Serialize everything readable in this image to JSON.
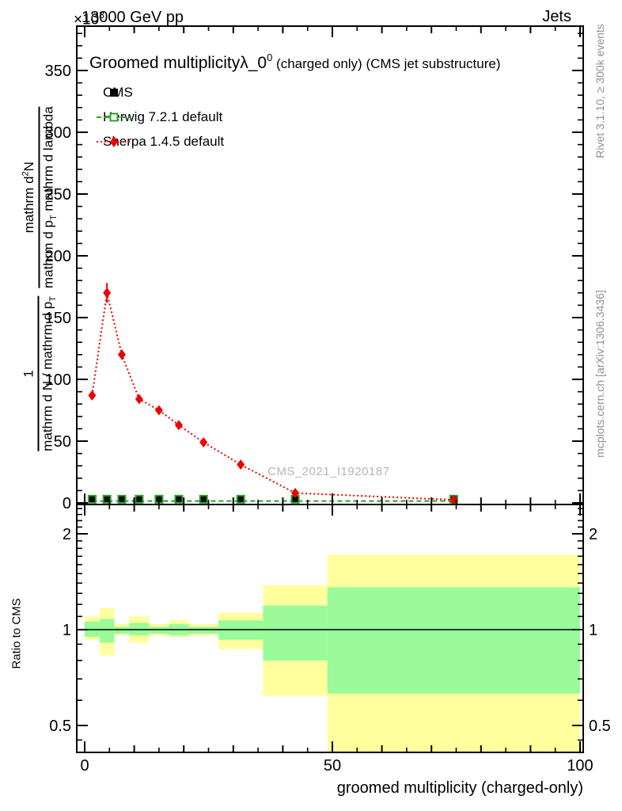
{
  "header": {
    "scale_prefix": "×10",
    "scale_exp": "3",
    "beam_label": "13000 GeV pp",
    "process_label": "Jets"
  },
  "title": {
    "main": "Groomed multiplicity",
    "lambda": "λ_0",
    "sup": "0",
    "suffix": " (charged only) (CMS jet substructure)"
  },
  "legend": [
    {
      "label": "CMS",
      "marker": "filled-square"
    },
    {
      "label": "Herwig 7.2.1 default",
      "marker": "open-square-dashed-line"
    },
    {
      "label": "Sherpa 1.4.5 default",
      "marker": "filled-diamond-dotted-line"
    }
  ],
  "watermark": "CMS_2021_I1920187",
  "side_notes": {
    "top": "Rivet 3.1.10, ≥ 300k events",
    "bottom": "mcplots.cern.ch [arXiv:1306.3436]"
  },
  "axes": {
    "main_ylabel": {
      "frac1_num": "1",
      "frac1_den_pre": "mathrm d N / mathrm d p",
      "frac1_den_sub": "T",
      "frac2_num_pre": "mathrm d",
      "frac2_num_sup": "2",
      "frac2_num_post": "N",
      "frac2_den_pre": "mathrm d p",
      "frac2_den_sub": "T",
      "frac2_den_post": " mathrm d lambda"
    },
    "ratio_ylabel": "Ratio to CMS",
    "xlabel": "groomed multiplicity (charged-only)"
  },
  "colors": {
    "cms": "#000000",
    "herwig": "#2ca02c",
    "sherpa": "#ee0000",
    "band_yellow": "#ffff9e",
    "band_green": "#99fb99",
    "frame": "#000000"
  },
  "chart_data": {
    "type": "line",
    "title": "Groomed multiplicity λ_0^0 (charged only) (CMS jet substructure)",
    "xlabel": "groomed multiplicity (charged-only)",
    "ylabel": "1/(dN/dp_T) d²N/(dp_T dλ)  [×10³]",
    "y_units_scale": "×10³",
    "xlim": [
      -1.6,
      100.6
    ],
    "main_ylim": [
      -1.3,
      386
    ],
    "x_ticks_major": [
      0,
      50,
      100
    ],
    "x_ticks_medium": [
      10,
      20,
      30,
      40,
      60,
      70,
      80,
      90
    ],
    "x_ticks_minor": [
      5,
      15,
      25,
      35,
      45,
      55,
      65,
      75,
      85,
      95
    ],
    "y_ticks_major": [
      0,
      50,
      100,
      150,
      200,
      250,
      300,
      350
    ],
    "y_ticks_minor_step": 10,
    "grid": false,
    "legend_position": "top-left-inside",
    "bin_edges": [
      0,
      3,
      6,
      9,
      13,
      17,
      21,
      27,
      36,
      49,
      100
    ],
    "x_centers": [
      1.5,
      4.5,
      7.5,
      11,
      15,
      19,
      24,
      31.5,
      42.5,
      74.5
    ],
    "series": [
      {
        "name": "CMS",
        "style": "filled-square",
        "values": [
          3,
          3,
          3,
          3,
          3,
          3,
          3,
          3,
          3,
          3
        ]
      },
      {
        "name": "Herwig 7.2.1 default",
        "style": "open-square, dashed line",
        "values": [
          3,
          3,
          3,
          3,
          3,
          3,
          3,
          3,
          3,
          3
        ]
      },
      {
        "name": "Sherpa 1.4.5 default",
        "style": "filled-diamond, dotted line",
        "values": [
          87,
          170,
          120,
          84,
          75,
          63,
          49,
          31,
          8,
          2.5
        ],
        "yerr": [
          3,
          8,
          4,
          2,
          2,
          2,
          1.5,
          1,
          0.5,
          0.5
        ]
      }
    ],
    "ratio_panel": {
      "ylabel": "Ratio to CMS",
      "yscale": "log",
      "ylim": [
        0.412,
        2.47
      ],
      "ticks_major": [
        0.5,
        1,
        2
      ],
      "ticks_major_labels": [
        "0.5",
        "1",
        "2"
      ],
      "ticks_minor": [
        0.45,
        0.6,
        0.7,
        0.8,
        0.9,
        1.1,
        1.2,
        1.3,
        1.4,
        1.5,
        1.6,
        1.7,
        1.8,
        1.9,
        2.1,
        2.2,
        2.3,
        2.4
      ],
      "unity_line": 1,
      "bands": [
        {
          "bin": [
            0,
            3
          ],
          "yellow": [
            0.93,
            1.1
          ],
          "green": [
            0.95,
            1.06
          ]
        },
        {
          "bin": [
            3,
            6
          ],
          "yellow": [
            0.83,
            1.17
          ],
          "green": [
            0.91,
            1.08
          ]
        },
        {
          "bin": [
            6,
            9
          ],
          "yellow": [
            0.96,
            1.04
          ],
          "green": [
            0.97,
            1.02
          ]
        },
        {
          "bin": [
            9,
            13
          ],
          "yellow": [
            0.91,
            1.1
          ],
          "green": [
            0.96,
            1.05
          ]
        },
        {
          "bin": [
            13,
            17
          ],
          "yellow": [
            0.96,
            1.04
          ],
          "green": [
            0.97,
            1.02
          ]
        },
        {
          "bin": [
            17,
            21
          ],
          "yellow": [
            0.95,
            1.07
          ],
          "green": [
            0.96,
            1.04
          ]
        },
        {
          "bin": [
            21,
            27
          ],
          "yellow": [
            0.96,
            1.04
          ],
          "green": [
            0.97,
            1.02
          ]
        },
        {
          "bin": [
            27,
            36
          ],
          "yellow": [
            0.87,
            1.13
          ],
          "green": [
            0.93,
            1.07
          ]
        },
        {
          "bin": [
            36,
            49
          ],
          "yellow": [
            0.62,
            1.38
          ],
          "green": [
            0.8,
            1.19
          ]
        },
        {
          "bin": [
            49,
            100
          ],
          "yellow": [
            0.4,
            1.72
          ],
          "green": [
            0.63,
            1.36
          ]
        }
      ]
    }
  }
}
